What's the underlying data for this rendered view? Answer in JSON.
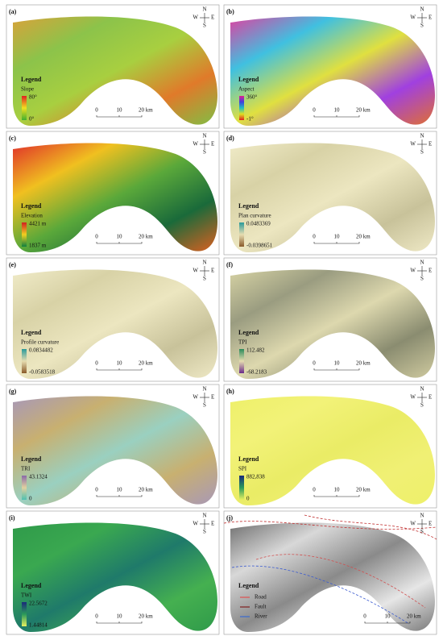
{
  "panels": [
    {
      "label": "(a)",
      "compass": {
        "n": "N",
        "w": "W",
        "e": "E",
        "s": "S"
      },
      "legend_title": "Legend",
      "layer": "Slope",
      "max": "80°",
      "min": "0°",
      "scale": {
        "start": "0",
        "mid": "10",
        "end": "20 km"
      }
    },
    {
      "label": "(b)",
      "compass": {
        "n": "N",
        "w": "W",
        "e": "E",
        "s": "S"
      },
      "legend_title": "Legend",
      "layer": "Aspect",
      "max": "360°",
      "min": "-1°",
      "scale": {
        "start": "0",
        "mid": "10",
        "end": "20 km"
      }
    },
    {
      "label": "(c)",
      "compass": {
        "n": "N",
        "w": "W",
        "e": "E",
        "s": "S"
      },
      "legend_title": "Legend",
      "layer": "Elevation",
      "max": "4421 m",
      "min": "1837 m",
      "scale": {
        "start": "0",
        "mid": "10",
        "end": "20 km"
      }
    },
    {
      "label": "(d)",
      "compass": {
        "n": "N",
        "w": "W",
        "e": "E",
        "s": "S"
      },
      "legend_title": "Legend",
      "layer": "Plan curvature",
      "max": "0.0483369",
      "min": "-0.0398651",
      "scale": {
        "start": "0",
        "mid": "10",
        "end": "20 km"
      }
    },
    {
      "label": "(e)",
      "compass": {
        "n": "N",
        "w": "W",
        "e": "E",
        "s": "S"
      },
      "legend_title": "Legend",
      "layer": "Profile curvature",
      "max": "0.0834482",
      "min": "-0.0583518",
      "scale": {
        "start": "0",
        "mid": "10",
        "end": "20 km"
      }
    },
    {
      "label": "(f)",
      "compass": {
        "n": "N",
        "w": "W",
        "e": "E",
        "s": "S"
      },
      "legend_title": "Legend",
      "layer": "TPI",
      "max": "112.482",
      "min": "-68.2183",
      "scale": {
        "start": "0",
        "mid": "10",
        "end": "20 km"
      }
    },
    {
      "label": "(g)",
      "compass": {
        "n": "N",
        "w": "W",
        "e": "E",
        "s": "S"
      },
      "legend_title": "Legend",
      "layer": "TRI",
      "max": "43.1324",
      "min": "0",
      "scale": {
        "start": "0",
        "mid": "10",
        "end": "20 km"
      }
    },
    {
      "label": "(h)",
      "compass": {
        "n": "N",
        "w": "W",
        "e": "E",
        "s": "S"
      },
      "legend_title": "Legend",
      "layer": "SPI",
      "max": "882,838",
      "min": "0",
      "scale": {
        "start": "0",
        "mid": "10",
        "end": "20 km"
      }
    },
    {
      "label": "(i)",
      "compass": {
        "n": "N",
        "w": "W",
        "e": "E",
        "s": "S"
      },
      "legend_title": "Legend",
      "layer": "TWI",
      "max": "22.5672",
      "min": "1.44814",
      "scale": {
        "start": "0",
        "mid": "10",
        "end": "20 km"
      }
    },
    {
      "label": "(j)",
      "compass": {
        "n": "N",
        "w": "W",
        "e": "E",
        "s": "S"
      },
      "legend_title": "Legend",
      "items": [
        "Road",
        "Fault",
        "River"
      ],
      "scale": {
        "start": "0",
        "mid": "10",
        "end": "20 km"
      }
    }
  ]
}
